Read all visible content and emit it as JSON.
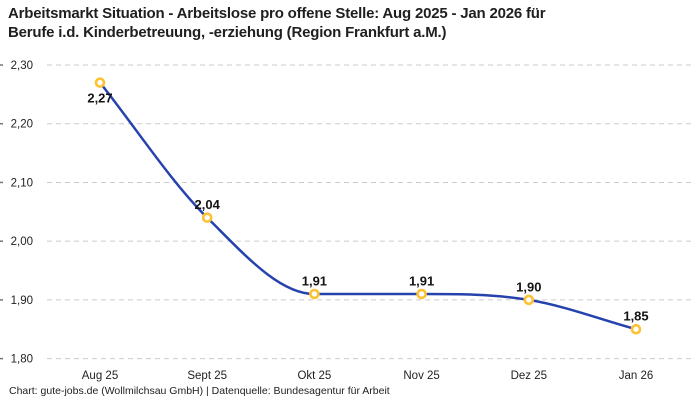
{
  "header": {
    "title_line1": "Arbeitsmarkt Situation - Arbeitslose pro offene Stelle: Aug 2025 - Jan 2026 für",
    "title_line2": "Berufe i.d. Kinderbetreuung, -erziehung (Region Frankfurt a.M.)"
  },
  "footer": {
    "credit": "Chart: gute-jobs.de (Wollmilchsau GmbH) | Datenquelle: Bundesagentur für Arbeit"
  },
  "chart_data": {
    "type": "line",
    "title": "Arbeitsmarkt Situation - Arbeitslose pro offene Stelle: Aug 2025 - Jan 2026 für Berufe i.d. Kinderbetreuung, -erziehung (Region Frankfurt a.M.)",
    "categories": [
      "Aug 25",
      "Sept 25",
      "Okt 25",
      "Nov 25",
      "Dez 25",
      "Jan 26"
    ],
    "values": [
      2.27,
      2.04,
      1.91,
      1.91,
      1.9,
      1.85
    ],
    "value_labels": [
      "2,27",
      "2,04",
      "1,91",
      "1,91",
      "1,90",
      "1,85"
    ],
    "label_placement": [
      "below",
      "above",
      "above",
      "above",
      "above",
      "above"
    ],
    "xlabel": "",
    "ylabel": "",
    "ylim": [
      1.8,
      2.3
    ],
    "ytick_values": [
      2.3,
      2.2,
      2.1,
      2.0,
      1.9,
      1.8
    ],
    "ytick_labels": [
      "2,30",
      "2,20",
      "2,10",
      "2,00",
      "1,90",
      "1,80"
    ],
    "grid": "horizontal dashed",
    "legend": "none",
    "curve": "monotone",
    "colors": {
      "line": "#2542ad",
      "marker_ring": "#fcc231",
      "marker_fill": "#ffffff",
      "gridline": "#cbcbcb",
      "tick": "#777777",
      "axis_text": "#1f1f1f",
      "value_label_text": "#141414"
    }
  }
}
